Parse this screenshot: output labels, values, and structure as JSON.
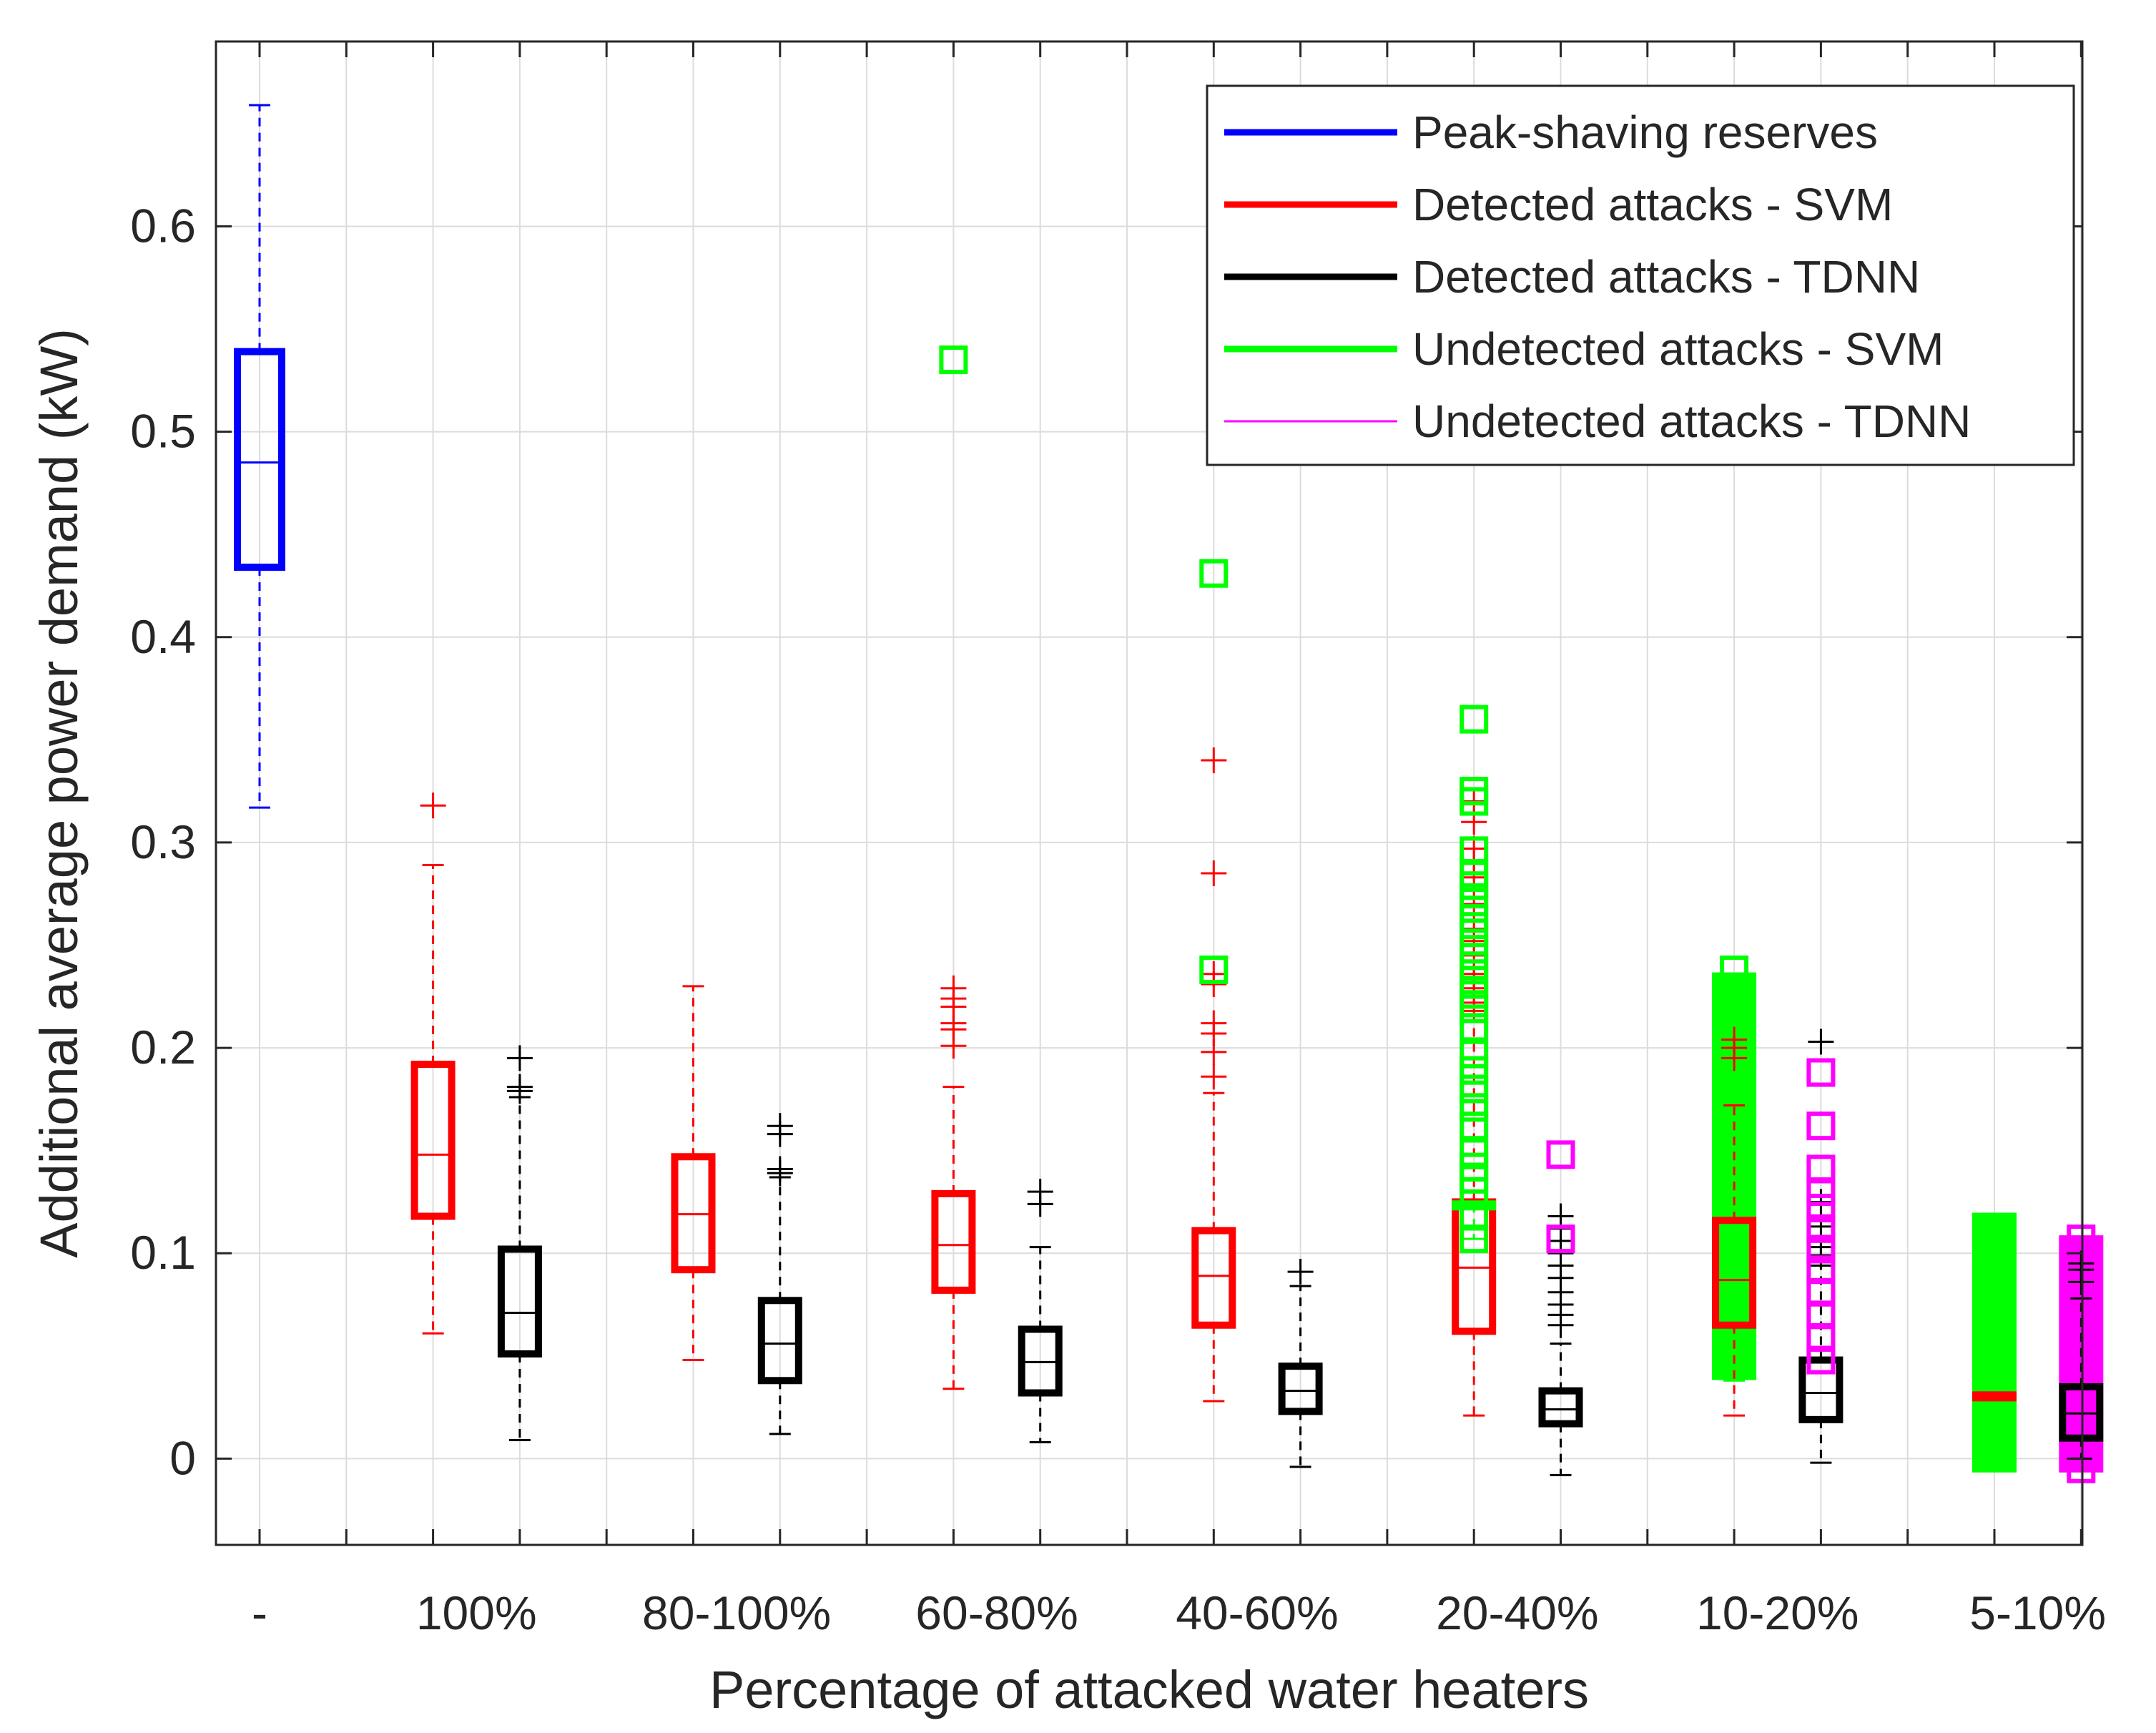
{
  "chart_data": {
    "type": "boxplot",
    "title": "",
    "xlabel": "Percentage of attacked water heaters",
    "ylabel": "Additional average power demand (kW)",
    "ylim": [
      -0.042,
      0.69
    ],
    "yticks": [
      0,
      0.1,
      0.2,
      0.3,
      0.4,
      0.5,
      0.6
    ],
    "ytick_labels": [
      "0",
      "0.1",
      "0.2",
      "0.3",
      "0.4",
      "0.5",
      "0.6"
    ],
    "grid": true,
    "legend_position": "top-right",
    "categories": [
      "-",
      "100%",
      "80-100%",
      "60-80%",
      "40-60%",
      "20-40%",
      "10-20%",
      "5-10%"
    ],
    "series": [
      {
        "name": "Peak-shaving reserves",
        "color": "#0000ff",
        "line": "thick"
      },
      {
        "name": "Detected attacks - SVM",
        "color": "#ff0000",
        "line": "thick"
      },
      {
        "name": "Detected attacks - TDNN",
        "color": "#000000",
        "line": "thick"
      },
      {
        "name": "Undetected attacks - SVM",
        "color": "#00ff00",
        "line": "thick"
      },
      {
        "name": "Undetected attacks - TDNN",
        "color": "#ff00ff",
        "line": "thin"
      }
    ],
    "boxes": [
      {
        "category": "-",
        "series": "Peak-shaving reserves",
        "pos": 0,
        "q1": 0.434,
        "median": 0.485,
        "q3": 0.539,
        "whisker_low": 0.317,
        "whisker_high": 0.659,
        "outliers": []
      },
      {
        "category": "100%",
        "series": "Detected attacks - SVM",
        "pos": 2,
        "q1": 0.118,
        "median": 0.148,
        "q3": 0.192,
        "whisker_low": 0.061,
        "whisker_high": 0.289,
        "outliers": [
          0.318
        ]
      },
      {
        "category": "100%",
        "series": "Detected attacks - TDNN",
        "pos": 3,
        "q1": 0.051,
        "median": 0.071,
        "q3": 0.102,
        "whisker_low": 0.009,
        "whisker_high": 0.176,
        "outliers": [
          0.179,
          0.181,
          0.195
        ]
      },
      {
        "category": "80-100%",
        "series": "Detected attacks - SVM",
        "pos": 5,
        "q1": 0.092,
        "median": 0.119,
        "q3": 0.147,
        "whisker_low": 0.048,
        "whisker_high": 0.23,
        "outliers": []
      },
      {
        "category": "80-100%",
        "series": "Detected attacks - TDNN",
        "pos": 6,
        "q1": 0.038,
        "median": 0.056,
        "q3": 0.077,
        "whisker_low": 0.012,
        "whisker_high": 0.137,
        "outliers": [
          0.139,
          0.141,
          0.158,
          0.162
        ]
      },
      {
        "category": "60-80%",
        "series": "Detected attacks - SVM",
        "pos": 8,
        "q1": 0.082,
        "median": 0.104,
        "q3": 0.129,
        "whisker_low": 0.034,
        "whisker_high": 0.181,
        "outliers": [
          0.201,
          0.209,
          0.212,
          0.22,
          0.224,
          0.229
        ]
      },
      {
        "category": "60-80%",
        "series": "Undetected attacks - SVM",
        "pos": 8,
        "q1": null,
        "median": null,
        "q3": null,
        "whisker_low": null,
        "whisker_high": null,
        "outliers": [
          0.535
        ]
      },
      {
        "category": "60-80%",
        "series": "Detected attacks - TDNN",
        "pos": 9,
        "q1": 0.032,
        "median": 0.047,
        "q3": 0.063,
        "whisker_low": 0.008,
        "whisker_high": 0.103,
        "outliers": [
          0.124,
          0.13
        ]
      },
      {
        "category": "40-60%",
        "series": "Detected attacks - SVM",
        "pos": 11,
        "q1": 0.065,
        "median": 0.089,
        "q3": 0.111,
        "whisker_low": 0.028,
        "whisker_high": 0.178,
        "outliers": [
          0.186,
          0.198,
          0.207,
          0.212,
          0.231,
          0.236,
          0.285,
          0.34
        ]
      },
      {
        "category": "40-60%",
        "series": "Undetected attacks - SVM",
        "pos": 11,
        "q1": null,
        "median": null,
        "q3": null,
        "whisker_low": null,
        "whisker_high": null,
        "outliers": [
          0.238,
          0.431
        ]
      },
      {
        "category": "40-60%",
        "series": "Detected attacks - TDNN",
        "pos": 12,
        "q1": 0.023,
        "median": 0.033,
        "q3": 0.045,
        "whisker_low": -0.004,
        "whisker_high": 0.084,
        "outliers": [
          0.091
        ]
      },
      {
        "category": "20-40%",
        "series": "Detected attacks - SVM",
        "pos": 14,
        "q1": 0.062,
        "median": 0.093,
        "q3": 0.125,
        "whisker_low": 0.021,
        "whisker_high": 0.218,
        "outliers": [
          0.222,
          0.229,
          0.232,
          0.236,
          0.245,
          0.252,
          0.258,
          0.27,
          0.283,
          0.291,
          0.297,
          0.31,
          0.32
        ]
      },
      {
        "category": "20-40%",
        "series": "Undetected attacks - SVM",
        "pos": 14,
        "q1": 0.124,
        "median": 0.124,
        "q3": 0.124,
        "whisker_low": 0.107,
        "whisker_high": 0.124,
        "outliers": [
          0.107,
          0.118,
          0.13,
          0.136,
          0.142,
          0.149,
          0.162,
          0.171,
          0.18,
          0.189,
          0.197,
          0.21,
          0.219,
          0.226,
          0.233,
          0.24,
          0.248,
          0.256,
          0.263,
          0.271,
          0.279,
          0.285,
          0.296,
          0.32,
          0.325,
          0.36
        ]
      },
      {
        "category": "20-40%",
        "series": "Detected attacks - TDNN",
        "pos": 15,
        "q1": 0.017,
        "median": 0.024,
        "q3": 0.033,
        "whisker_low": -0.008,
        "whisker_high": 0.056,
        "outliers": [
          0.065,
          0.07,
          0.075,
          0.081,
          0.088,
          0.094,
          0.1,
          0.106,
          0.112,
          0.118
        ]
      },
      {
        "category": "20-40%",
        "series": "Undetected attacks - TDNN",
        "pos": 15,
        "q1": null,
        "median": null,
        "q3": null,
        "whisker_low": null,
        "whisker_high": null,
        "outliers": [
          0.107,
          0.148
        ]
      },
      {
        "category": "10-20%",
        "series": "Undetected attacks - SVM",
        "pos": 17,
        "q1": 0.04,
        "median": 0.14,
        "q3": 0.235,
        "whisker_low": 0.038,
        "whisker_high": 0.235,
        "outliers": [
          0.238
        ]
      },
      {
        "category": "10-20%",
        "series": "Detected attacks - SVM",
        "pos": 17,
        "q1": 0.065,
        "median": 0.087,
        "q3": 0.116,
        "whisker_low": 0.021,
        "whisker_high": 0.172,
        "outliers": [
          0.195,
          0.2,
          0.204
        ]
      },
      {
        "category": "10-20%",
        "series": "Detected attacks - TDNN",
        "pos": 18,
        "q1": 0.019,
        "median": 0.032,
        "q3": 0.048,
        "whisker_low": -0.002,
        "whisker_high": 0.094,
        "outliers": [
          0.099,
          0.103,
          0.113,
          0.125,
          0.203
        ]
      },
      {
        "category": "10-20%",
        "series": "Undetected attacks - TDNN",
        "pos": 18,
        "q1": null,
        "median": null,
        "q3": null,
        "whisker_low": null,
        "whisker_high": null,
        "outliers": [
          0.048,
          0.059,
          0.07,
          0.081,
          0.092,
          0.102,
          0.112,
          0.122,
          0.13,
          0.141,
          0.162,
          0.188
        ]
      },
      {
        "category": "5-10%",
        "series": "Undetected attacks - SVM",
        "pos": 20,
        "q1": -0.005,
        "median": 0.031,
        "q3": 0.118,
        "whisker_low": -0.005,
        "whisker_high": 0.118,
        "outliers": []
      },
      {
        "category": "5-10%",
        "series": "Detected attacks - SVM",
        "pos": 20,
        "q1": 0.031,
        "median": 0.031,
        "q3": 0.031,
        "whisker_low": 0.031,
        "whisker_high": 0.031,
        "outliers": []
      },
      {
        "category": "5-10%",
        "series": "Undetected attacks - TDNN",
        "pos": 21,
        "q1": -0.005,
        "median": 0.025,
        "q3": 0.107,
        "whisker_low": -0.005,
        "whisker_high": 0.107,
        "outliers": [
          -0.005,
          0.005,
          0.015,
          0.025,
          0.035,
          0.045,
          0.055,
          0.065,
          0.075,
          0.085,
          0.095,
          0.107
        ]
      },
      {
        "category": "5-10%",
        "series": "Detected attacks - TDNN",
        "pos": 21,
        "q1": 0.01,
        "median": 0.022,
        "q3": 0.035,
        "whisker_low": 0.0,
        "whisker_high": 0.078,
        "outliers": [
          0.086,
          0.092,
          0.095
        ]
      }
    ]
  }
}
